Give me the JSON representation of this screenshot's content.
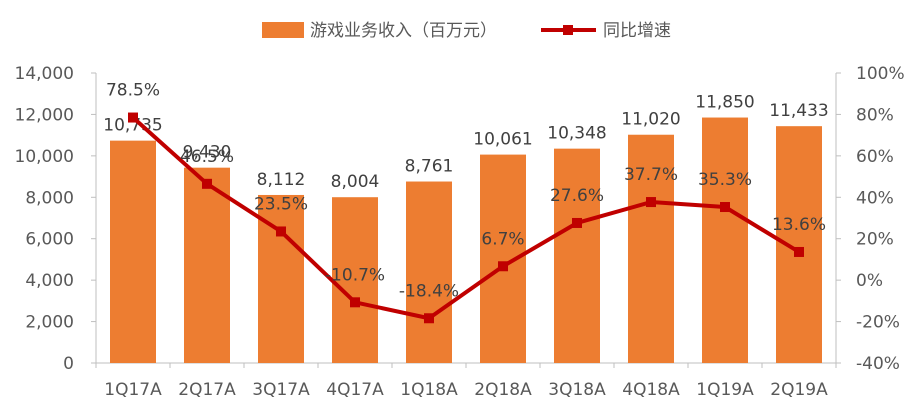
{
  "chart_data": {
    "type": "bar+line",
    "categories": [
      "1Q17A",
      "2Q17A",
      "3Q17A",
      "4Q17A",
      "1Q18A",
      "2Q18A",
      "3Q18A",
      "4Q18A",
      "1Q19A",
      "2Q19A"
    ],
    "series": [
      {
        "name": "游戏业务收入（百万元）",
        "type": "bar",
        "axis": "left",
        "color": "#ED7D31",
        "values": [
          10735,
          9430,
          8112,
          8004,
          8761,
          10061,
          10348,
          11020,
          11850,
          11433
        ],
        "labels": [
          "10,735",
          "9,430",
          "8,112",
          "8,004",
          "8,761",
          "10,061",
          "10,348",
          "11,020",
          "11,850",
          "11,433"
        ]
      },
      {
        "name": "同比增速",
        "type": "line",
        "axis": "right",
        "color": "#C00000",
        "marker": "square",
        "values": [
          78.5,
          46.5,
          23.5,
          -10.7,
          -18.4,
          6.7,
          27.6,
          37.7,
          35.3,
          13.6
        ],
        "labels": [
          "78.5%",
          "46.5%",
          "23.5%",
          "-10.7%",
          "-18.4%",
          "6.7%",
          "27.6%",
          "37.7%",
          "35.3%",
          "13.6%"
        ]
      }
    ],
    "y_left": {
      "range": [
        0,
        14000
      ],
      "ticks": [
        0,
        2000,
        4000,
        6000,
        8000,
        10000,
        12000,
        14000
      ],
      "tick_labels": [
        "0",
        "2,000",
        "4,000",
        "6,000",
        "8,000",
        "10,000",
        "12,000",
        "14,000"
      ]
    },
    "y_right": {
      "range": [
        -40,
        100
      ],
      "ticks": [
        -40,
        -20,
        0,
        20,
        40,
        60,
        80,
        100
      ],
      "tick_labels": [
        "-40%",
        "-20%",
        "0%",
        "20%",
        "40%",
        "60%",
        "80%",
        "100%"
      ]
    },
    "grid": false,
    "legend_position": "top"
  }
}
